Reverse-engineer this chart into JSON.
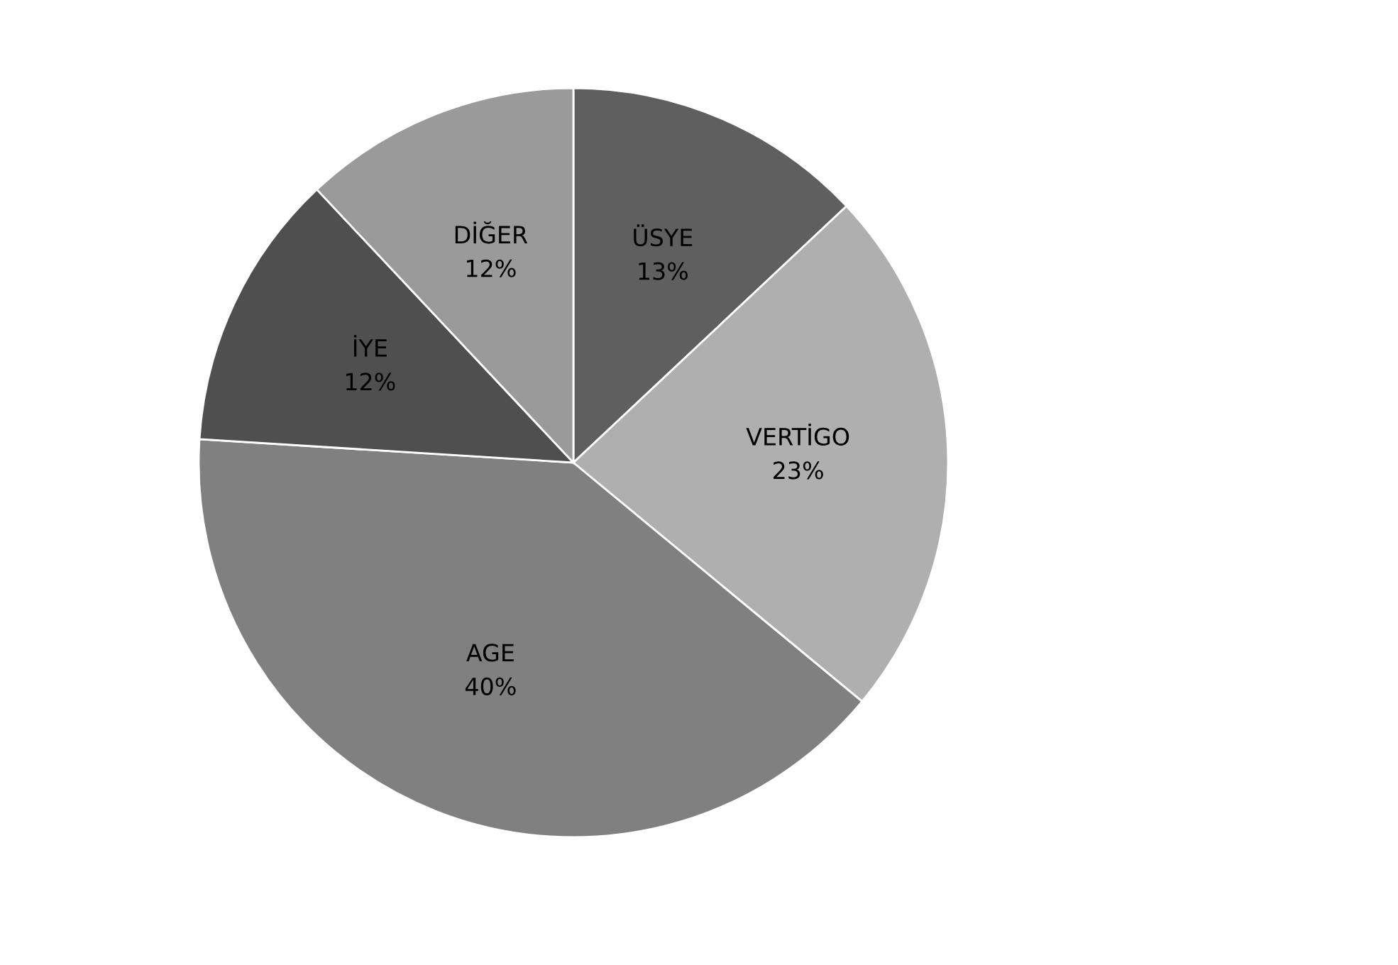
{
  "chart_data": {
    "type": "pie",
    "categories": [
      "ÜSYE",
      "VERTİGO",
      "AGE",
      "İYE",
      "DİĞER"
    ],
    "values": [
      13,
      23,
      40,
      12,
      12
    ],
    "colors": [
      "#5f5f5f",
      "#afafaf",
      "#808080",
      "#4f4f4f",
      "#9a9a9a"
    ],
    "value_labels": [
      "13%",
      "23%",
      "40%",
      "12%",
      "12%"
    ],
    "legend": false
  }
}
